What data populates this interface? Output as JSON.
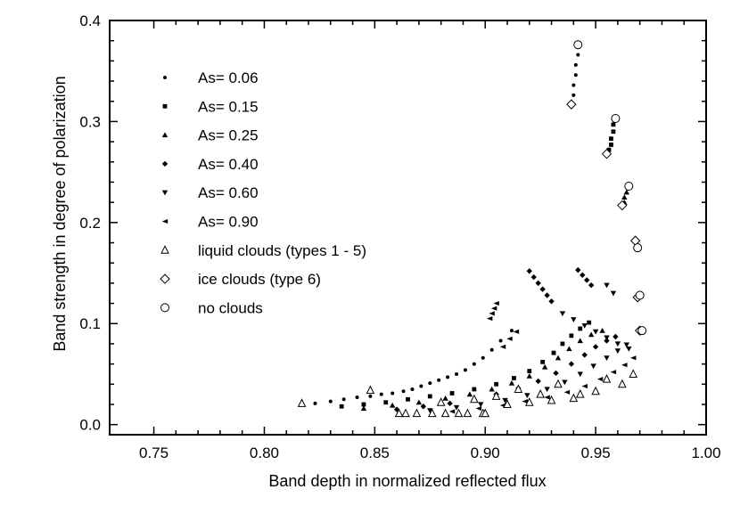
{
  "chart_data": {
    "type": "scatter",
    "xlabel": "Band depth in normalized reflected flux",
    "ylabel": "Band strength in degree of polarization",
    "xlim": [
      0.73,
      1.0
    ],
    "ylim": [
      -0.01,
      0.4
    ],
    "x_ticks": [
      "0.75",
      "0.80",
      "0.85",
      "0.90",
      "0.95",
      "1.00"
    ],
    "y_ticks": [
      "0.0",
      "0.1",
      "0.2",
      "0.3",
      "0.4"
    ],
    "legend_position": "top-left",
    "legend": [
      {
        "label": "As= 0.06",
        "marker": "dot"
      },
      {
        "label": "As= 0.15",
        "marker": "square"
      },
      {
        "label": "As= 0.25",
        "marker": "triangle-up-filled"
      },
      {
        "label": "As= 0.40",
        "marker": "diamond-filled"
      },
      {
        "label": "As= 0.60",
        "marker": "triangle-down-filled"
      },
      {
        "label": "As= 0.90",
        "marker": "triangle-left-filled"
      },
      {
        "label": "liquid clouds (types 1 - 5)",
        "marker": "triangle-up-open"
      },
      {
        "label": "ice clouds (type 6)",
        "marker": "diamond-open"
      },
      {
        "label": "no clouds",
        "marker": "circle-open"
      }
    ],
    "no_clouds": [
      [
        0.942,
        0.376
      ],
      [
        0.959,
        0.303
      ],
      [
        0.965,
        0.236
      ],
      [
        0.969,
        0.175
      ],
      [
        0.97,
        0.128
      ],
      [
        0.971,
        0.093
      ]
    ],
    "ice_clouds": [
      [
        0.939,
        0.317
      ],
      [
        0.955,
        0.268
      ],
      [
        0.962,
        0.217
      ],
      [
        0.968,
        0.182
      ],
      [
        0.969,
        0.126
      ],
      [
        0.97,
        0.093
      ]
    ],
    "liquid_clouds": [
      [
        0.817,
        0.021
      ],
      [
        0.848,
        0.034
      ],
      [
        0.861,
        0.011
      ],
      [
        0.864,
        0.011
      ],
      [
        0.869,
        0.011
      ],
      [
        0.876,
        0.011
      ],
      [
        0.882,
        0.011
      ],
      [
        0.888,
        0.011
      ],
      [
        0.892,
        0.011
      ],
      [
        0.899,
        0.011
      ],
      [
        0.9,
        0.011
      ],
      [
        0.88,
        0.022
      ],
      [
        0.895,
        0.025
      ],
      [
        0.905,
        0.028
      ],
      [
        0.915,
        0.035
      ],
      [
        0.925,
        0.03
      ],
      [
        0.933,
        0.04
      ],
      [
        0.943,
        0.03
      ],
      [
        0.95,
        0.033
      ],
      [
        0.955,
        0.045
      ],
      [
        0.962,
        0.04
      ],
      [
        0.967,
        0.05
      ],
      [
        0.91,
        0.02
      ],
      [
        0.92,
        0.022
      ],
      [
        0.93,
        0.024
      ],
      [
        0.94,
        0.026
      ]
    ],
    "series": [
      {
        "name": "As= 0.06",
        "marker": "dot",
        "points": [
          [
            0.823,
            0.021
          ],
          [
            0.83,
            0.023
          ],
          [
            0.836,
            0.025
          ],
          [
            0.842,
            0.027
          ],
          [
            0.848,
            0.028
          ],
          [
            0.853,
            0.03
          ],
          [
            0.858,
            0.031
          ],
          [
            0.863,
            0.033
          ],
          [
            0.867,
            0.035
          ],
          [
            0.871,
            0.038
          ],
          [
            0.875,
            0.041
          ],
          [
            0.879,
            0.044
          ],
          [
            0.883,
            0.047
          ],
          [
            0.887,
            0.05
          ],
          [
            0.891,
            0.054
          ],
          [
            0.895,
            0.06
          ],
          [
            0.899,
            0.066
          ],
          [
            0.903,
            0.074
          ],
          [
            0.907,
            0.083
          ],
          [
            0.912,
            0.093
          ],
          [
            0.942,
            0.376
          ],
          [
            0.942,
            0.366
          ],
          [
            0.941,
            0.356
          ],
          [
            0.941,
            0.346
          ],
          [
            0.94,
            0.336
          ],
          [
            0.94,
            0.326
          ]
        ]
      },
      {
        "name": "As= 0.15",
        "marker": "square",
        "points": [
          [
            0.835,
            0.018
          ],
          [
            0.845,
            0.02
          ],
          [
            0.855,
            0.022
          ],
          [
            0.865,
            0.025
          ],
          [
            0.875,
            0.028
          ],
          [
            0.885,
            0.031
          ],
          [
            0.895,
            0.035
          ],
          [
            0.905,
            0.04
          ],
          [
            0.913,
            0.046
          ],
          [
            0.92,
            0.053
          ],
          [
            0.926,
            0.062
          ],
          [
            0.931,
            0.071
          ],
          [
            0.935,
            0.08
          ],
          [
            0.939,
            0.088
          ],
          [
            0.943,
            0.095
          ],
          [
            0.947,
            0.101
          ],
          [
            0.958,
            0.297
          ],
          [
            0.958,
            0.29
          ],
          [
            0.957,
            0.283
          ],
          [
            0.957,
            0.277
          ],
          [
            0.956,
            0.272
          ]
        ]
      },
      {
        "name": "As= 0.25",
        "marker": "triangle-up-filled",
        "points": [
          [
            0.845,
            0.016
          ],
          [
            0.858,
            0.019
          ],
          [
            0.87,
            0.022
          ],
          [
            0.882,
            0.026
          ],
          [
            0.893,
            0.03
          ],
          [
            0.903,
            0.035
          ],
          [
            0.912,
            0.041
          ],
          [
            0.92,
            0.048
          ],
          [
            0.927,
            0.057
          ],
          [
            0.933,
            0.066
          ],
          [
            0.938,
            0.075
          ],
          [
            0.943,
            0.083
          ],
          [
            0.948,
            0.089
          ],
          [
            0.953,
            0.093
          ],
          [
            0.964,
            0.23
          ],
          [
            0.963,
            0.225
          ],
          [
            0.963,
            0.22
          ]
        ]
      },
      {
        "name": "As= 0.40",
        "marker": "diamond-filled",
        "points": [
          [
            0.86,
            0.015
          ],
          [
            0.872,
            0.018
          ],
          [
            0.884,
            0.021
          ],
          [
            0.895,
            0.025
          ],
          [
            0.905,
            0.03
          ],
          [
            0.915,
            0.036
          ],
          [
            0.924,
            0.043
          ],
          [
            0.932,
            0.051
          ],
          [
            0.939,
            0.06
          ],
          [
            0.945,
            0.069
          ],
          [
            0.95,
            0.077
          ],
          [
            0.955,
            0.083
          ],
          [
            0.959,
            0.087
          ],
          [
            0.92,
            0.152
          ],
          [
            0.922,
            0.146
          ],
          [
            0.924,
            0.14
          ],
          [
            0.926,
            0.134
          ],
          [
            0.928,
            0.128
          ],
          [
            0.93,
            0.122
          ],
          [
            0.942,
            0.153
          ],
          [
            0.944,
            0.148
          ],
          [
            0.946,
            0.143
          ],
          [
            0.948,
            0.138
          ]
        ]
      },
      {
        "name": "As= 0.60",
        "marker": "triangle-down-filled",
        "points": [
          [
            0.875,
            0.014
          ],
          [
            0.887,
            0.017
          ],
          [
            0.898,
            0.02
          ],
          [
            0.909,
            0.024
          ],
          [
            0.919,
            0.029
          ],
          [
            0.928,
            0.035
          ],
          [
            0.936,
            0.042
          ],
          [
            0.943,
            0.05
          ],
          [
            0.949,
            0.058
          ],
          [
            0.955,
            0.066
          ],
          [
            0.96,
            0.073
          ],
          [
            0.964,
            0.079
          ],
          [
            0.935,
            0.11
          ],
          [
            0.94,
            0.104
          ],
          [
            0.945,
            0.098
          ],
          [
            0.95,
            0.092
          ],
          [
            0.955,
            0.086
          ],
          [
            0.96,
            0.08
          ],
          [
            0.965,
            0.075
          ],
          [
            0.955,
            0.138
          ],
          [
            0.958,
            0.13
          ]
        ]
      },
      {
        "name": "As= 0.90",
        "marker": "triangle-left-filled",
        "points": [
          [
            0.885,
            0.013
          ],
          [
            0.897,
            0.016
          ],
          [
            0.908,
            0.019
          ],
          [
            0.918,
            0.023
          ],
          [
            0.928,
            0.027
          ],
          [
            0.937,
            0.032
          ],
          [
            0.945,
            0.038
          ],
          [
            0.952,
            0.045
          ],
          [
            0.958,
            0.052
          ],
          [
            0.963,
            0.059
          ],
          [
            0.967,
            0.066
          ],
          [
            0.905,
            0.12
          ],
          [
            0.904,
            0.115
          ],
          [
            0.903,
            0.11
          ],
          [
            0.902,
            0.105
          ],
          [
            0.908,
            0.077
          ],
          [
            0.911,
            0.085
          ],
          [
            0.914,
            0.092
          ]
        ]
      }
    ]
  }
}
